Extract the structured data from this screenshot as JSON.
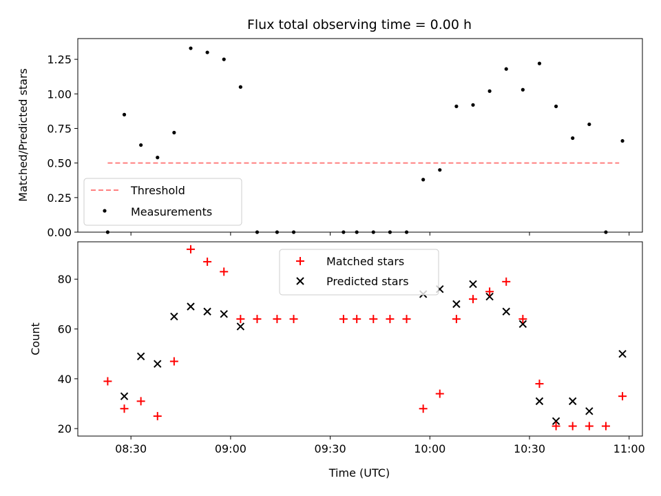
{
  "title": "Flux total observing time = 0.00 h",
  "xlabel": "Time (UTC)",
  "x_ticks": [
    {
      "label": "08:30",
      "t": 510
    },
    {
      "label": "09:00",
      "t": 540
    },
    {
      "label": "09:30",
      "t": 570
    },
    {
      "label": "10:00",
      "t": 600
    },
    {
      "label": "10:30",
      "t": 630
    },
    {
      "label": "11:00",
      "t": 660
    }
  ],
  "x_range_labels": [
    "08:14",
    "11:04"
  ],
  "colors": {
    "threshold": "#ff7f7f",
    "measurements": "#000000",
    "matched": "#ff0000",
    "predicted": "#000000"
  },
  "chart_data": [
    {
      "type": "scatter",
      "ylabel": "Matched/Predicted stars",
      "ylim": [
        0,
        1.4
      ],
      "y_ticks": [
        "0.00",
        "0.25",
        "0.50",
        "0.75",
        "1.00",
        "1.25"
      ],
      "legend_position": "lower-left",
      "threshold": {
        "name": "Threshold",
        "value": 0.5,
        "x_start": "08:23",
        "x_end": "10:57"
      },
      "series": [
        {
          "name": "Measurements",
          "x": [
            "08:23",
            "08:28",
            "08:33",
            "08:38",
            "08:43",
            "08:48",
            "08:53",
            "08:58",
            "09:03",
            "09:08",
            "09:14",
            "09:19",
            "09:34",
            "09:38",
            "09:43",
            "09:48",
            "09:53",
            "09:58",
            "10:03",
            "10:08",
            "10:13",
            "10:18",
            "10:23",
            "10:28",
            "10:33",
            "10:38",
            "10:43",
            "10:48",
            "10:53",
            "10:58"
          ],
          "y": [
            0.0,
            0.85,
            0.63,
            0.54,
            0.72,
            1.33,
            1.3,
            1.25,
            1.05,
            0.0,
            0.0,
            0.0,
            0.0,
            0.0,
            0.0,
            0.0,
            0.0,
            0.38,
            0.45,
            0.91,
            0.92,
            1.02,
            1.18,
            1.03,
            1.22,
            0.91,
            0.68,
            0.78,
            0.0,
            0.66
          ]
        }
      ]
    },
    {
      "type": "scatter",
      "ylabel": "Count",
      "ylim": [
        17,
        95
      ],
      "y_ticks": [
        "20",
        "40",
        "60",
        "80"
      ],
      "legend_position": "upper-center",
      "series": [
        {
          "name": "Matched stars",
          "marker": "plus",
          "x": [
            "08:23",
            "08:28",
            "08:33",
            "08:38",
            "08:43",
            "08:48",
            "08:53",
            "08:58",
            "09:03",
            "09:08",
            "09:14",
            "09:19",
            "09:34",
            "09:38",
            "09:43",
            "09:48",
            "09:53",
            "09:58",
            "10:03",
            "10:08",
            "10:13",
            "10:18",
            "10:23",
            "10:28",
            "10:33",
            "10:38",
            "10:43",
            "10:48",
            "10:53",
            "10:58"
          ],
          "y": [
            39,
            28,
            31,
            25,
            47,
            92,
            87,
            83,
            64,
            64,
            64,
            64,
            64,
            64,
            64,
            64,
            64,
            28,
            34,
            64,
            72,
            75,
            79,
            64,
            38,
            21,
            21,
            21,
            21,
            33
          ]
        },
        {
          "name": "Predicted stars",
          "marker": "x",
          "x": [
            "08:28",
            "08:33",
            "08:38",
            "08:43",
            "08:48",
            "08:53",
            "08:58",
            "09:03",
            "09:58",
            "10:03",
            "10:08",
            "10:13",
            "10:18",
            "10:23",
            "10:28",
            "10:33",
            "10:38",
            "10:43",
            "10:48",
            "10:58"
          ],
          "y": [
            33,
            49,
            46,
            65,
            69,
            67,
            66,
            61,
            74,
            76,
            70,
            78,
            73,
            67,
            62,
            31,
            23,
            31,
            27,
            50
          ]
        }
      ]
    }
  ]
}
